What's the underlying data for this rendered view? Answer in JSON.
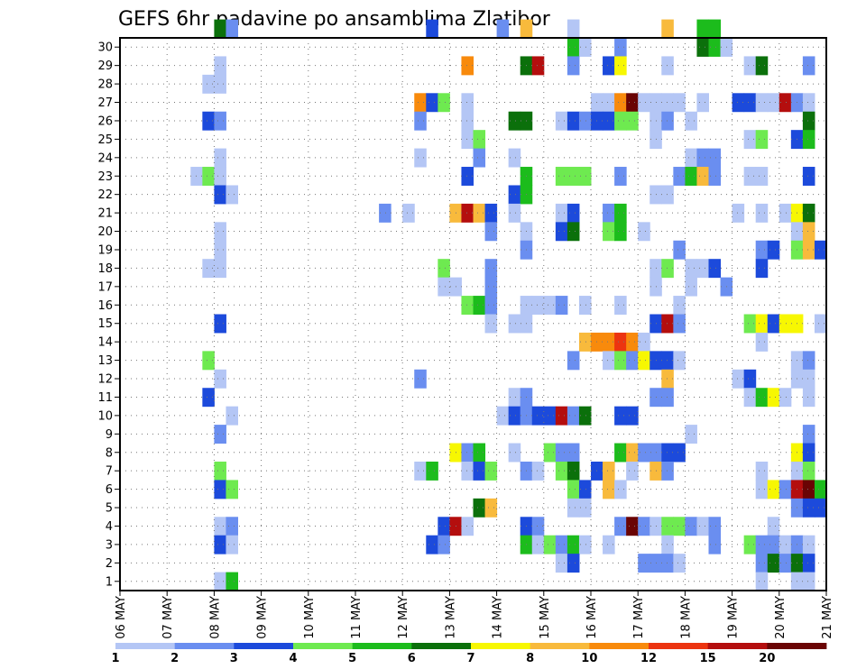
{
  "chart_data": {
    "type": "heatmap",
    "title": "GEFS 6hr padavine po ansamblima Zlatibor",
    "xlabel": "",
    "ylabel": "",
    "x_ticks": [
      "06 MAY",
      "07 MAY",
      "08 MAY",
      "09 MAY",
      "10 MAY",
      "11 MAY",
      "12 MAY",
      "13 MAY",
      "14 MAY",
      "15 MAY",
      "16 MAY",
      "17 MAY",
      "18 MAY",
      "19 MAY",
      "20 MAY",
      "21 MAY"
    ],
    "y_ticks": [
      1,
      2,
      3,
      4,
      5,
      6,
      7,
      8,
      9,
      10,
      11,
      12,
      13,
      14,
      15,
      16,
      17,
      18,
      19,
      20,
      21,
      22,
      23,
      24,
      25,
      26,
      27,
      28,
      29,
      30
    ],
    "xlim": [
      0,
      60
    ],
    "ylim": [
      0,
      30
    ],
    "grid": true,
    "legend": "bottom colorbar",
    "color_levels": [
      1,
      2,
      3,
      4,
      5,
      6,
      7,
      8,
      10,
      12,
      15,
      20
    ],
    "colorbar_labels": [
      "1",
      "2",
      "3",
      "4",
      "5",
      "6",
      "7",
      "8",
      "10",
      "12",
      "15",
      "20"
    ],
    "colors": [
      "#b4c6f5",
      "#6a8ef0",
      "#1c4adb",
      "#6eea50",
      "#1cbc1c",
      "#0b700b",
      "#f7f702",
      "#f8ba3c",
      "#f88a0c",
      "#ec3410",
      "#b40e0e",
      "#6a0404"
    ],
    "cells": [
      [
        8,
        30,
        6
      ],
      [
        9,
        30,
        2
      ],
      [
        26,
        30,
        3
      ],
      [
        32,
        30,
        2
      ],
      [
        34,
        30,
        8
      ],
      [
        38,
        30,
        1
      ],
      [
        46,
        30,
        8
      ],
      [
        49,
        30,
        5
      ],
      [
        50,
        30,
        5
      ],
      [
        38,
        29,
        5
      ],
      [
        39,
        29,
        1
      ],
      [
        42,
        29,
        2
      ],
      [
        49,
        29,
        6
      ],
      [
        50,
        29,
        5
      ],
      [
        51,
        29,
        1
      ],
      [
        8,
        28,
        1
      ],
      [
        29,
        28,
        9
      ],
      [
        34,
        28,
        6
      ],
      [
        35,
        28,
        11
      ],
      [
        38,
        28,
        2
      ],
      [
        41,
        28,
        3
      ],
      [
        42,
        28,
        7
      ],
      [
        46,
        28,
        1
      ],
      [
        53,
        28,
        1
      ],
      [
        54,
        28,
        6
      ],
      [
        58,
        28,
        2
      ],
      [
        7,
        27,
        1
      ],
      [
        8,
        27,
        1
      ],
      [
        25,
        26,
        9
      ],
      [
        26,
        26,
        3
      ],
      [
        27,
        26,
        4
      ],
      [
        29,
        26,
        1
      ],
      [
        40,
        26,
        1
      ],
      [
        41,
        26,
        1
      ],
      [
        42,
        26,
        9
      ],
      [
        43,
        26,
        12
      ],
      [
        44,
        26,
        1
      ],
      [
        45,
        26,
        1
      ],
      [
        46,
        26,
        1
      ],
      [
        47,
        26,
        1
      ],
      [
        49,
        26,
        1
      ],
      [
        52,
        26,
        3
      ],
      [
        53,
        26,
        3
      ],
      [
        54,
        26,
        1
      ],
      [
        55,
        26,
        1
      ],
      [
        56,
        26,
        11
      ],
      [
        57,
        26,
        2
      ],
      [
        58,
        26,
        1
      ],
      [
        7,
        25,
        3
      ],
      [
        8,
        25,
        2
      ],
      [
        25,
        25,
        2
      ],
      [
        29,
        25,
        1
      ],
      [
        33,
        25,
        6
      ],
      [
        34,
        25,
        6
      ],
      [
        37,
        25,
        1
      ],
      [
        38,
        25,
        3
      ],
      [
        39,
        25,
        2
      ],
      [
        40,
        25,
        3
      ],
      [
        41,
        25,
        3
      ],
      [
        42,
        25,
        4
      ],
      [
        43,
        25,
        4
      ],
      [
        45,
        25,
        1
      ],
      [
        46,
        25,
        2
      ],
      [
        48,
        25,
        1
      ],
      [
        58,
        25,
        6
      ],
      [
        29,
        24,
        1
      ],
      [
        30,
        24,
        4
      ],
      [
        45,
        24,
        1
      ],
      [
        53,
        24,
        1
      ],
      [
        54,
        24,
        4
      ],
      [
        57,
        24,
        3
      ],
      [
        58,
        24,
        5
      ],
      [
        8,
        23,
        1
      ],
      [
        25,
        23,
        1
      ],
      [
        30,
        23,
        2
      ],
      [
        33,
        23,
        1
      ],
      [
        48,
        23,
        1
      ],
      [
        49,
        23,
        2
      ],
      [
        50,
        23,
        2
      ],
      [
        6,
        22,
        1
      ],
      [
        7,
        22,
        4
      ],
      [
        8,
        22,
        1
      ],
      [
        29,
        22,
        3
      ],
      [
        34,
        22,
        5
      ],
      [
        37,
        22,
        4
      ],
      [
        38,
        22,
        4
      ],
      [
        39,
        22,
        4
      ],
      [
        42,
        22,
        2
      ],
      [
        47,
        22,
        2
      ],
      [
        48,
        22,
        5
      ],
      [
        49,
        22,
        8
      ],
      [
        50,
        22,
        2
      ],
      [
        53,
        22,
        1
      ],
      [
        54,
        22,
        1
      ],
      [
        58,
        22,
        3
      ],
      [
        8,
        21,
        3
      ],
      [
        9,
        21,
        1
      ],
      [
        33,
        21,
        3
      ],
      [
        34,
        21,
        5
      ],
      [
        45,
        21,
        1
      ],
      [
        46,
        21,
        1
      ],
      [
        22,
        20,
        2
      ],
      [
        24,
        20,
        1
      ],
      [
        28,
        20,
        8
      ],
      [
        29,
        20,
        11
      ],
      [
        30,
        20,
        8
      ],
      [
        31,
        20,
        3
      ],
      [
        33,
        20,
        1
      ],
      [
        37,
        20,
        1
      ],
      [
        38,
        20,
        3
      ],
      [
        41,
        20,
        2
      ],
      [
        42,
        20,
        5
      ],
      [
        52,
        20,
        1
      ],
      [
        54,
        20,
        1
      ],
      [
        56,
        20,
        1
      ],
      [
        57,
        20,
        7
      ],
      [
        58,
        20,
        6
      ],
      [
        8,
        19,
        1
      ],
      [
        31,
        19,
        2
      ],
      [
        34,
        19,
        1
      ],
      [
        37,
        19,
        3
      ],
      [
        38,
        19,
        6
      ],
      [
        41,
        19,
        4
      ],
      [
        42,
        19,
        5
      ],
      [
        44,
        19,
        1
      ],
      [
        57,
        19,
        1
      ],
      [
        58,
        19,
        8
      ],
      [
        8,
        18,
        1
      ],
      [
        34,
        18,
        2
      ],
      [
        47,
        18,
        2
      ],
      [
        54,
        18,
        2
      ],
      [
        55,
        18,
        3
      ],
      [
        57,
        18,
        4
      ],
      [
        58,
        18,
        8
      ],
      [
        59,
        18,
        3
      ],
      [
        7,
        17,
        1
      ],
      [
        8,
        17,
        1
      ],
      [
        27,
        17,
        4
      ],
      [
        31,
        17,
        2
      ],
      [
        45,
        17,
        1
      ],
      [
        46,
        17,
        4
      ],
      [
        48,
        17,
        1
      ],
      [
        49,
        17,
        1
      ],
      [
        50,
        17,
        3
      ],
      [
        54,
        17,
        3
      ],
      [
        27,
        16,
        1
      ],
      [
        28,
        16,
        1
      ],
      [
        31,
        16,
        2
      ],
      [
        45,
        16,
        1
      ],
      [
        48,
        16,
        1
      ],
      [
        51,
        16,
        2
      ],
      [
        29,
        15,
        4
      ],
      [
        30,
        15,
        5
      ],
      [
        31,
        15,
        2
      ],
      [
        34,
        15,
        1
      ],
      [
        35,
        15,
        1
      ],
      [
        36,
        15,
        1
      ],
      [
        37,
        15,
        2
      ],
      [
        39,
        15,
        1
      ],
      [
        42,
        15,
        1
      ],
      [
        47,
        15,
        1
      ],
      [
        8,
        14,
        3
      ],
      [
        31,
        14,
        1
      ],
      [
        33,
        14,
        1
      ],
      [
        34,
        14,
        1
      ],
      [
        45,
        14,
        3
      ],
      [
        46,
        14,
        11
      ],
      [
        47,
        14,
        2
      ],
      [
        53,
        14,
        4
      ],
      [
        54,
        14,
        7
      ],
      [
        55,
        14,
        3
      ],
      [
        56,
        14,
        7
      ],
      [
        57,
        14,
        7
      ],
      [
        59,
        14,
        1
      ],
      [
        39,
        13,
        8
      ],
      [
        40,
        13,
        9
      ],
      [
        41,
        13,
        9
      ],
      [
        42,
        13,
        10
      ],
      [
        43,
        13,
        9
      ],
      [
        44,
        13,
        1
      ],
      [
        54,
        13,
        1
      ],
      [
        7,
        12,
        4
      ],
      [
        38,
        12,
        2
      ],
      [
        41,
        12,
        1
      ],
      [
        42,
        12,
        4
      ],
      [
        43,
        12,
        2
      ],
      [
        44,
        12,
        7
      ],
      [
        45,
        12,
        3
      ],
      [
        46,
        12,
        3
      ],
      [
        47,
        12,
        1
      ],
      [
        57,
        12,
        1
      ],
      [
        58,
        12,
        2
      ],
      [
        8,
        11,
        1
      ],
      [
        25,
        11,
        2
      ],
      [
        46,
        11,
        8
      ],
      [
        52,
        11,
        1
      ],
      [
        53,
        11,
        3
      ],
      [
        57,
        11,
        1
      ],
      [
        58,
        11,
        1
      ],
      [
        7,
        10,
        3
      ],
      [
        33,
        10,
        1
      ],
      [
        34,
        10,
        2
      ],
      [
        45,
        10,
        2
      ],
      [
        46,
        10,
        2
      ],
      [
        53,
        10,
        1
      ],
      [
        54,
        10,
        5
      ],
      [
        55,
        10,
        7
      ],
      [
        56,
        10,
        1
      ],
      [
        58,
        10,
        1
      ],
      [
        9,
        9,
        1
      ],
      [
        32,
        9,
        1
      ],
      [
        33,
        9,
        3
      ],
      [
        34,
        9,
        2
      ],
      [
        35,
        9,
        3
      ],
      [
        36,
        9,
        3
      ],
      [
        37,
        9,
        11
      ],
      [
        38,
        9,
        2
      ],
      [
        39,
        9,
        6
      ],
      [
        42,
        9,
        3
      ],
      [
        43,
        9,
        3
      ],
      [
        8,
        8,
        2
      ],
      [
        48,
        8,
        1
      ],
      [
        58,
        8,
        2
      ],
      [
        28,
        7,
        7
      ],
      [
        29,
        7,
        2
      ],
      [
        30,
        7,
        5
      ],
      [
        33,
        7,
        1
      ],
      [
        36,
        7,
        4
      ],
      [
        37,
        7,
        2
      ],
      [
        38,
        7,
        2
      ],
      [
        42,
        7,
        5
      ],
      [
        43,
        7,
        8
      ],
      [
        44,
        7,
        2
      ],
      [
        45,
        7,
        2
      ],
      [
        46,
        7,
        3
      ],
      [
        47,
        7,
        3
      ],
      [
        57,
        7,
        7
      ],
      [
        58,
        7,
        3
      ],
      [
        8,
        6,
        4
      ],
      [
        25,
        6,
        1
      ],
      [
        26,
        6,
        5
      ],
      [
        29,
        6,
        1
      ],
      [
        30,
        6,
        3
      ],
      [
        31,
        6,
        4
      ],
      [
        34,
        6,
        2
      ],
      [
        35,
        6,
        1
      ],
      [
        37,
        6,
        4
      ],
      [
        38,
        6,
        6
      ],
      [
        40,
        6,
        3
      ],
      [
        41,
        6,
        8
      ],
      [
        43,
        6,
        1
      ],
      [
        45,
        6,
        8
      ],
      [
        46,
        6,
        2
      ],
      [
        54,
        6,
        1
      ],
      [
        57,
        6,
        1
      ],
      [
        58,
        6,
        4
      ],
      [
        8,
        5,
        3
      ],
      [
        9,
        5,
        4
      ],
      [
        38,
        5,
        4
      ],
      [
        39,
        5,
        3
      ],
      [
        41,
        5,
        8
      ],
      [
        42,
        5,
        1
      ],
      [
        54,
        5,
        1
      ],
      [
        55,
        5,
        7
      ],
      [
        56,
        5,
        2
      ],
      [
        57,
        5,
        11
      ],
      [
        58,
        5,
        12
      ],
      [
        59,
        5,
        5
      ],
      [
        30,
        4,
        6
      ],
      [
        31,
        4,
        8
      ],
      [
        38,
        4,
        1
      ],
      [
        39,
        4,
        1
      ],
      [
        57,
        4,
        2
      ],
      [
        58,
        4,
        3
      ],
      [
        59,
        4,
        3
      ],
      [
        8,
        3,
        1
      ],
      [
        9,
        3,
        2
      ],
      [
        27,
        3,
        3
      ],
      [
        28,
        3,
        11
      ],
      [
        29,
        3,
        1
      ],
      [
        34,
        3,
        3
      ],
      [
        35,
        3,
        2
      ],
      [
        42,
        3,
        2
      ],
      [
        43,
        3,
        12
      ],
      [
        44,
        3,
        2
      ],
      [
        45,
        3,
        1
      ],
      [
        46,
        3,
        4
      ],
      [
        47,
        3,
        4
      ],
      [
        48,
        3,
        2
      ],
      [
        49,
        3,
        1
      ],
      [
        50,
        3,
        2
      ],
      [
        55,
        3,
        1
      ],
      [
        8,
        2,
        3
      ],
      [
        9,
        2,
        1
      ],
      [
        26,
        2,
        3
      ],
      [
        27,
        2,
        2
      ],
      [
        34,
        2,
        5
      ],
      [
        35,
        2,
        1
      ],
      [
        36,
        2,
        4
      ],
      [
        37,
        2,
        2
      ],
      [
        38,
        2,
        5
      ],
      [
        39,
        2,
        1
      ],
      [
        41,
        2,
        1
      ],
      [
        46,
        2,
        1
      ],
      [
        50,
        2,
        2
      ],
      [
        53,
        2,
        4
      ],
      [
        54,
        2,
        2
      ],
      [
        55,
        2,
        2
      ],
      [
        56,
        2,
        1
      ],
      [
        57,
        2,
        2
      ],
      [
        58,
        2,
        1
      ],
      [
        37,
        1,
        1
      ],
      [
        38,
        1,
        3
      ],
      [
        44,
        1,
        2
      ],
      [
        45,
        1,
        2
      ],
      [
        46,
        1,
        2
      ],
      [
        47,
        1,
        1
      ],
      [
        54,
        1,
        2
      ],
      [
        55,
        1,
        6
      ],
      [
        56,
        1,
        2
      ],
      [
        57,
        1,
        6
      ],
      [
        58,
        1,
        3
      ],
      [
        8,
        0,
        1
      ],
      [
        9,
        0,
        5
      ],
      [
        54,
        0,
        1
      ],
      [
        57,
        0,
        1
      ],
      [
        58,
        0,
        1
      ]
    ]
  }
}
